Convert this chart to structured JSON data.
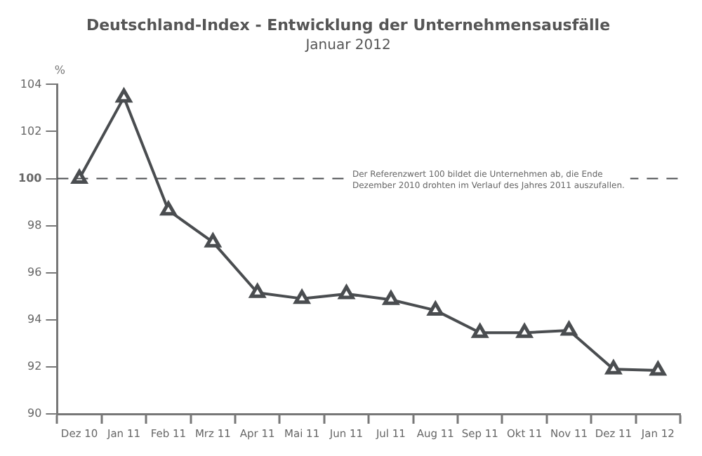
{
  "chart_data": {
    "type": "line",
    "title": "Deutschland-Index - Entwicklung der Unternehmensausfälle",
    "subtitle": "Januar 2012",
    "ylabel": "%",
    "categories": [
      "Dez 10",
      "Jan 11",
      "Feb 11",
      "Mrz 11",
      "Apr 11",
      "Mai 11",
      "Jun 11",
      "Jul 11",
      "Aug 11",
      "Sep 11",
      "Okt 11",
      "Nov 11",
      "Dez 11",
      "Jan 12"
    ],
    "series": [
      {
        "color": "#4a4d50",
        "values": [
          100,
          103.45,
          98.65,
          97.3,
          95.15,
          94.9,
          95.1,
          94.85,
          94.4,
          93.45,
          93.45,
          93.55,
          91.9,
          91.85
        ]
      }
    ],
    "ylim": [
      90,
      104
    ],
    "yticks": [
      90,
      92,
      94,
      96,
      98,
      100,
      102,
      104
    ],
    "ref_lines": [
      {
        "axis": "y",
        "value": 100,
        "label": "Der Referenzwert 100 bildet die Unternehmen ab, die Ende Dezember 2010 drohten im Verlauf des Jahres 2011 auszufallen.",
        "color": "#4a4d50",
        "line_style": "dashed"
      }
    ],
    "grid": false,
    "legend": false,
    "marker": "triangle",
    "line_style": "solid"
  }
}
